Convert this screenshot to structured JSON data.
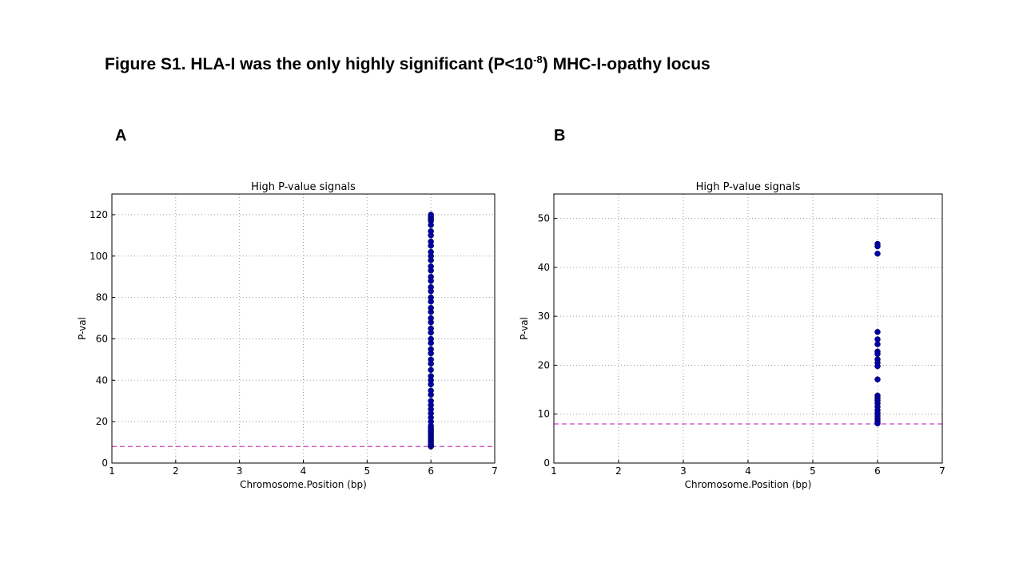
{
  "header": {
    "title": "Figure S1. HLA-I was the only highly significant (P<10",
    "title_superscript": "-8",
    "title_end": ") MHC-I-opathy locus"
  },
  "panels": [
    "A",
    "B"
  ],
  "chart_data": [
    {
      "type": "scatter",
      "title": "High P-value signals",
      "x_label": "Chromosome.Position (bp)",
      "y_label": "P-val",
      "xlim": [
        1,
        7
      ],
      "xticks": [
        1,
        2,
        3,
        4,
        5,
        6,
        7
      ],
      "ylim": [
        0,
        130
      ],
      "yticks": [
        0,
        20,
        40,
        60,
        80,
        100,
        120
      ],
      "grid": true,
      "threshold": 8,
      "threshold_color": "#cc44cc",
      "series": [
        {
          "color": "#0000a8",
          "x": [
            6,
            6,
            6,
            6,
            6,
            6,
            6,
            6,
            6,
            6,
            6,
            6,
            6,
            6,
            6,
            6,
            6,
            6,
            6,
            6,
            6,
            6,
            6,
            6,
            6,
            6,
            6,
            6,
            6,
            6,
            6,
            6,
            6,
            6,
            6,
            6,
            6,
            6,
            6,
            6,
            6,
            6,
            6,
            6,
            6,
            6,
            6,
            6,
            6,
            6,
            6,
            6,
            6,
            6,
            6,
            6
          ],
          "values": [
            8,
            8.5,
            9,
            10,
            11,
            12,
            13,
            14,
            15,
            16,
            17,
            18,
            20,
            22,
            24,
            26,
            28,
            30,
            33,
            35,
            38,
            40,
            42,
            45,
            48,
            50,
            53,
            55,
            58,
            60,
            63,
            65,
            68,
            70,
            73,
            75,
            78,
            80,
            83,
            85,
            88,
            90,
            93,
            95,
            98,
            100,
            102,
            105,
            107,
            110,
            112,
            115,
            117,
            118,
            119,
            120
          ]
        }
      ]
    },
    {
      "type": "scatter",
      "title": "High P-value signals",
      "x_label": "Chromosome.Position (bp)",
      "y_label": "P-val",
      "xlim": [
        1,
        7
      ],
      "xticks": [
        1,
        2,
        3,
        4,
        5,
        6,
        7
      ],
      "ylim": [
        0,
        55
      ],
      "yticks": [
        0,
        10,
        20,
        30,
        40,
        50
      ],
      "grid": true,
      "threshold": 8,
      "threshold_color": "#cc44cc",
      "series": [
        {
          "color": "#0000a8",
          "x": [
            6,
            6,
            6,
            6,
            6,
            6,
            6,
            6,
            6,
            6,
            6,
            6,
            6,
            6,
            6,
            6,
            6,
            6,
            6,
            6,
            6,
            6,
            6
          ],
          "values": [
            44.8,
            44.3,
            42.8,
            26.8,
            25.3,
            24.3,
            22.8,
            22.3,
            21.2,
            20.5,
            19.8,
            17.1,
            13.8,
            13.3,
            12.8,
            12.2,
            11.5,
            10.8,
            10.2,
            9.6,
            9.0,
            8.5,
            8.1
          ]
        }
      ]
    }
  ]
}
